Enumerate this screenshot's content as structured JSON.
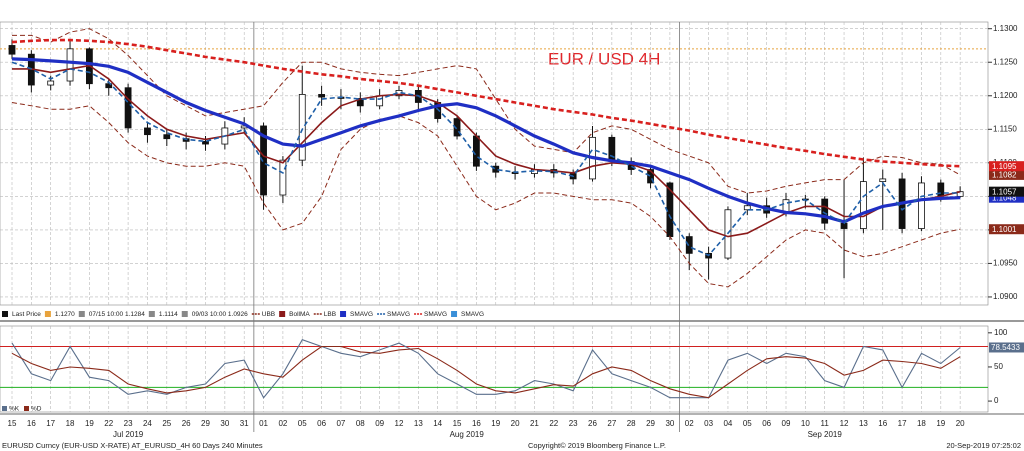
{
  "chart_data": [
    {
      "type": "candlestick",
      "title": "EUR / USD 4H",
      "last_price_label": "Last Price",
      "categories": [
        "15",
        "16",
        "17",
        "18",
        "19",
        "22",
        "23",
        "24",
        "25",
        "26",
        "29",
        "30",
        "31",
        "01",
        "02",
        "05",
        "06",
        "07",
        "08",
        "09",
        "12",
        "13",
        "14",
        "15",
        "16",
        "19",
        "20",
        "21",
        "22",
        "23",
        "26",
        "27",
        "28",
        "29",
        "30",
        "02",
        "03",
        "04",
        "05",
        "06",
        "09",
        "10",
        "11",
        "12",
        "13",
        "16",
        "17",
        "18",
        "19",
        "20"
      ],
      "month_labels": [
        "Jul 2019",
        "Aug 2019",
        "Sep 2019"
      ],
      "open": [
        1.1275,
        1.1262,
        1.1216,
        1.1222,
        1.127,
        1.1218,
        1.1212,
        1.1152,
        1.1142,
        1.1136,
        1.1132,
        1.1128,
        1.1152,
        1.1155,
        1.1052,
        1.1104,
        1.1202,
        1.1198,
        1.1196,
        1.1185,
        1.12,
        1.1208,
        1.119,
        1.1166,
        1.114,
        1.1095,
        1.1086,
        1.1084,
        1.109,
        1.1085,
        1.1076,
        1.1138,
        1.1102,
        1.109,
        1.107,
        1.099,
        1.0965,
        1.0958,
        1.103,
        1.1036,
        1.1025,
        1.1045,
        1.1046,
        1.101,
        1.1002,
        1.1072,
        1.1076,
        1.1002,
        1.107,
        1.105
      ],
      "high": [
        1.1284,
        1.1268,
        1.123,
        1.1284,
        1.1272,
        1.1225,
        1.1218,
        1.116,
        1.115,
        1.1145,
        1.114,
        1.1162,
        1.1168,
        1.116,
        1.111,
        1.1245,
        1.1215,
        1.121,
        1.1205,
        1.121,
        1.1215,
        1.1214,
        1.1195,
        1.117,
        1.1145,
        1.11,
        1.1095,
        1.1098,
        1.1098,
        1.109,
        1.1155,
        1.1142,
        1.1108,
        1.1095,
        1.1072,
        1.0995,
        1.0975,
        1.1035,
        1.1055,
        1.1048,
        1.1055,
        1.1052,
        1.105,
        1.1075,
        1.1108,
        1.109,
        1.1085,
        1.108,
        1.1075,
        1.1065
      ],
      "low": [
        1.1255,
        1.1205,
        1.1208,
        1.1215,
        1.121,
        1.12,
        1.1145,
        1.113,
        1.1125,
        1.112,
        1.1118,
        1.112,
        1.1145,
        1.103,
        1.104,
        1.1095,
        1.1185,
        1.118,
        1.1175,
        1.118,
        1.1195,
        1.118,
        1.116,
        1.1135,
        1.1088,
        1.1078,
        1.1075,
        1.1078,
        1.1078,
        1.1068,
        1.1072,
        1.1095,
        1.1082,
        1.1062,
        1.0985,
        1.094,
        1.0926,
        1.0955,
        1.1022,
        1.1018,
        1.102,
        1.1032,
        1.1,
        1.0928,
        1.0995,
        1.1,
        1.0995,
        1.0998,
        1.1042,
        1.1048
      ],
      "close": [
        1.1262,
        1.1216,
        1.1222,
        1.127,
        1.1218,
        1.1212,
        1.1152,
        1.1142,
        1.1136,
        1.1132,
        1.1128,
        1.1152,
        1.1155,
        1.1052,
        1.1104,
        1.1202,
        1.1198,
        1.1196,
        1.1185,
        1.12,
        1.1208,
        1.119,
        1.1166,
        1.114,
        1.1095,
        1.1086,
        1.1084,
        1.109,
        1.1085,
        1.1076,
        1.1138,
        1.1102,
        1.109,
        1.107,
        1.099,
        1.0965,
        1.0958,
        1.103,
        1.1036,
        1.1025,
        1.1045,
        1.1046,
        1.101,
        1.1002,
        1.1072,
        1.1076,
        1.1002,
        1.107,
        1.105,
        1.1057
      ],
      "candle_color": "#111111",
      "hline": {
        "name": "1.1270",
        "value": 1.127,
        "color": "#e8a33d"
      },
      "high_marker": "07/15 10:00 1.1284",
      "mid_marker": "1.1114",
      "low_marker": "09/03 10:00 1.0926",
      "series": [
        {
          "name": "UBB",
          "color": "#8b2a1a",
          "dash": true,
          "width": 1,
          "show_last": true,
          "values": [
            1.129,
            1.129,
            1.128,
            1.1295,
            1.13,
            1.1285,
            1.126,
            1.123,
            1.12,
            1.1185,
            1.117,
            1.1175,
            1.118,
            1.1185,
            1.122,
            1.125,
            1.125,
            1.124,
            1.1235,
            1.1232,
            1.123,
            1.1235,
            1.124,
            1.1245,
            1.124,
            1.1195,
            1.115,
            1.1125,
            1.112,
            1.1115,
            1.1145,
            1.1155,
            1.115,
            1.1135,
            1.112,
            1.111,
            1.11,
            1.1065,
            1.1055,
            1.1058,
            1.1065,
            1.107,
            1.1075,
            1.1075,
            1.11,
            1.111,
            1.1108,
            1.11,
            1.1098,
            1.1082
          ]
        },
        {
          "name": "BollMA",
          "color": "#8b1a1a",
          "dash": false,
          "width": 1.6,
          "show_last": false,
          "values": [
            1.124,
            1.124,
            1.1235,
            1.124,
            1.1245,
            1.1225,
            1.1195,
            1.117,
            1.115,
            1.114,
            1.1135,
            1.114,
            1.1145,
            1.111,
            1.11,
            1.113,
            1.116,
            1.1185,
            1.1195,
            1.12,
            1.1202,
            1.12,
            1.119,
            1.117,
            1.114,
            1.111,
            1.1098,
            1.109,
            1.1088,
            1.1085,
            1.1095,
            1.11,
            1.1098,
            1.1088,
            1.106,
            1.103,
            1.1,
            1.099,
            1.0995,
            1.101,
            1.1025,
            1.1035,
            1.1035,
            1.102,
            1.102,
            1.1035,
            1.104,
            1.1045,
            1.105,
            1.1057
          ]
        },
        {
          "name": "LBB",
          "color": "#8b2a1a",
          "dash": true,
          "width": 1,
          "show_last": true,
          "values": [
            1.119,
            1.1185,
            1.118,
            1.118,
            1.1185,
            1.116,
            1.113,
            1.111,
            1.11,
            1.1095,
            1.1095,
            1.11,
            1.1095,
            1.104,
            1.1,
            1.101,
            1.105,
            1.112,
            1.115,
            1.1165,
            1.117,
            1.116,
            1.114,
            1.1095,
            1.105,
            1.103,
            1.104,
            1.1055,
            1.1055,
            1.105,
            1.1045,
            1.1045,
            1.104,
            1.102,
            1.099,
            1.095,
            1.092,
            1.0915,
            1.0935,
            1.096,
            1.0985,
            1.1,
            1.0995,
            1.097,
            1.096,
            1.0965,
            1.0975,
            1.0985,
            1.0995,
            1.1001
          ]
        },
        {
          "name": "SMAVG",
          "color": "#1f2fc4",
          "dash": false,
          "width": 3.2,
          "show_last": true,
          "values": [
            1.1255,
            1.1254,
            1.1252,
            1.125,
            1.1248,
            1.1244,
            1.1235,
            1.122,
            1.1205,
            1.119,
            1.1178,
            1.1168,
            1.1158,
            1.114,
            1.1128,
            1.1125,
            1.1135,
            1.1145,
            1.1155,
            1.1163,
            1.117,
            1.1178,
            1.1185,
            1.1188,
            1.1182,
            1.117,
            1.1155,
            1.114,
            1.1128,
            1.1115,
            1.1108,
            1.1103,
            1.11,
            1.1095,
            1.1085,
            1.1075,
            1.1062,
            1.105,
            1.104,
            1.1032,
            1.1026,
            1.1024,
            1.102,
            1.1012,
            1.1025,
            1.1035,
            1.104,
            1.1045,
            1.1047,
            1.1048
          ]
        },
        {
          "name": "SMAVG",
          "color": "#1f5fa8",
          "dash": true,
          "width": 1.6,
          "show_last": false,
          "values": [
            1.125,
            1.124,
            1.1225,
            1.124,
            1.1235,
            1.122,
            1.119,
            1.116,
            1.1145,
            1.1135,
            1.1132,
            1.114,
            1.115,
            1.11,
            1.1085,
            1.115,
            1.1195,
            1.1198,
            1.1195,
            1.1195,
            1.1205,
            1.12,
            1.118,
            1.115,
            1.111,
            1.109,
            1.1086,
            1.1088,
            1.1087,
            1.108,
            1.112,
            1.111,
            1.1095,
            1.108,
            1.102,
            1.0975,
            1.0962,
            1.0995,
            1.103,
            1.103,
            1.104,
            1.1045,
            1.1025,
            1.101,
            1.105,
            1.107,
            1.103,
            1.105,
            1.1055,
            1.1055
          ]
        },
        {
          "name": "SMAVG",
          "color": "#d8201e",
          "dash": true,
          "width": 2.6,
          "show_last": true,
          "values": [
            1.128,
            1.1282,
            1.1283,
            1.1283,
            1.1282,
            1.128,
            1.1277,
            1.1273,
            1.1268,
            1.1263,
            1.1258,
            1.1254,
            1.125,
            1.1245,
            1.124,
            1.1236,
            1.1232,
            1.1229,
            1.1225,
            1.1222,
            1.1219,
            1.1215,
            1.121,
            1.1205,
            1.12,
            1.1195,
            1.119,
            1.1185,
            1.118,
            1.1176,
            1.1172,
            1.1167,
            1.1163,
            1.1158,
            1.1153,
            1.1148,
            1.1142,
            1.1137,
            1.1132,
            1.1127,
            1.1122,
            1.1118,
            1.1113,
            1.1109,
            1.1105,
            1.1102,
            1.11,
            1.1098,
            1.1096,
            1.1095
          ]
        }
      ],
      "legend_extra": [
        {
          "name": "SMAVG",
          "color": "#3a8fd8"
        }
      ],
      "ylim": [
        1.0888,
        1.131
      ],
      "yticks": [
        {
          "value": 1.09,
          "label": "1.0900"
        },
        {
          "value": 1.095,
          "label": "1.0950"
        },
        {
          "value": 1.1,
          "label": "1.1000"
        },
        {
          "value": 1.105,
          "label": "1.1050"
        },
        {
          "value": 1.11,
          "label": "1.1100"
        },
        {
          "value": 1.115,
          "label": "1.1150"
        },
        {
          "value": 1.12,
          "label": "1.1200"
        },
        {
          "value": 1.125,
          "label": "1.1250"
        },
        {
          "value": 1.13,
          "label": "1.1300"
        }
      ],
      "grid": true,
      "source": "EURUSD Curncy (EUR-USD X-RATE) AT_EURUSD_4H 60 Days 240 Minutes",
      "copyright": "Copyright© 2019 Bloomberg Finance L.P.",
      "timestamp": "20-Sep-2019 07:25:02"
    },
    {
      "type": "line",
      "series": [
        {
          "name": "%K",
          "color": "#5a6f8c",
          "values": [
            85,
            40,
            30,
            80,
            35,
            30,
            10,
            15,
            10,
            20,
            25,
            55,
            60,
            5,
            40,
            90,
            80,
            70,
            65,
            75,
            85,
            70,
            40,
            25,
            10,
            10,
            15,
            30,
            25,
            15,
            75,
            40,
            30,
            20,
            5,
            5,
            5,
            60,
            70,
            55,
            70,
            65,
            30,
            20,
            80,
            75,
            20,
            70,
            55,
            78.5433
          ]
        },
        {
          "name": "%D",
          "color": "#8b2a1a",
          "values": [
            70,
            55,
            45,
            50,
            48,
            45,
            25,
            18,
            12,
            15,
            20,
            35,
            47,
            40,
            35,
            60,
            80,
            80,
            72,
            70,
            75,
            77,
            62,
            45,
            25,
            15,
            12,
            18,
            24,
            22,
            40,
            50,
            45,
            30,
            18,
            10,
            5,
            25,
            45,
            62,
            65,
            63,
            55,
            38,
            45,
            60,
            58,
            55,
            48,
            65
          ]
        }
      ],
      "hlines": [
        {
          "value": 80,
          "color": "#d02020"
        },
        {
          "value": 20,
          "color": "#20b020"
        }
      ],
      "ylim": [
        -16,
        110
      ],
      "yticks": [
        0,
        50,
        100
      ],
      "grid": true
    }
  ]
}
